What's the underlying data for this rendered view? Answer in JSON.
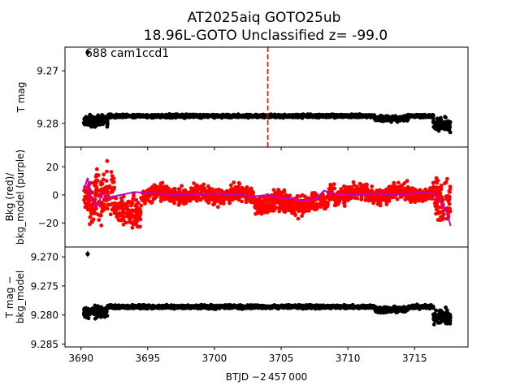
{
  "title_line1": "AT2025aiq  GOTO25ub",
  "title_line2": "18.96L-GOTO Unclassified z= -99.0",
  "annotation": "688 cam1ccd1",
  "xlabel": "BTJD −2 457 000",
  "colors": {
    "black": "#000000",
    "red": "#ff0000",
    "purple": "#bf00bf",
    "marker_line": "#ff0000"
  },
  "chart_data": [
    {
      "type": "scatter",
      "panel": "top",
      "ylabel": "T mag",
      "xlim": [
        3688.8,
        3719.0
      ],
      "ylim": [
        9.2845,
        9.2655
      ],
      "y_inverted": true,
      "x_ticks": [
        3690,
        3695,
        3700,
        3705,
        3710,
        3715
      ],
      "y_ticks": [
        9.27,
        9.28
      ],
      "y_tick_labels": [
        "9.27",
        "9.28"
      ],
      "vertical_line": {
        "x": 3704.0,
        "style": "dashed",
        "color": "red"
      },
      "series": [
        {
          "color": "black",
          "x_range": [
            3690.2,
            3717.7
          ],
          "baseline": 9.2786,
          "scatter": 0.0006,
          "segments": [
            {
              "x": [
                3690.2,
                3692.0
              ],
              "center": 9.2795,
              "spread": 0.0018
            },
            {
              "x": [
                3692.0,
                3712.0
              ],
              "center": 9.2786,
              "spread": 0.0005
            },
            {
              "x": [
                3712.0,
                3714.5
              ],
              "center": 9.2791,
              "spread": 0.0008
            },
            {
              "x": [
                3714.5,
                3716.4
              ],
              "center": 9.2786,
              "spread": 0.0005
            },
            {
              "x": [
                3716.4,
                3717.7
              ],
              "center": 9.2803,
              "spread": 0.0022
            }
          ],
          "outliers": [
            {
              "x": 3690.5,
              "y": 9.2665
            }
          ]
        }
      ]
    },
    {
      "type": "scatter",
      "panel": "middle",
      "ylabel": "Bkg (red)/\nbkg_model (purple)",
      "xlim": [
        3688.8,
        3719.0
      ],
      "ylim": [
        -37,
        34
      ],
      "y_ticks": [
        20,
        0,
        -20
      ],
      "y_tick_labels": [
        "20",
        "0",
        "−20"
      ],
      "series": [
        {
          "name": "Bkg",
          "color": "red",
          "x_range": [
            3690.2,
            3717.7
          ],
          "segments": [
            {
              "x": [
                3690.2,
                3691.0
              ],
              "center": -5,
              "spread": 25
            },
            {
              "x": [
                3691.0,
                3692.5
              ],
              "center": 2,
              "spread": 30
            },
            {
              "x": [
                3692.5,
                3694.5
              ],
              "center": -12,
              "spread": 18
            },
            {
              "x": [
                3694.5,
                3703.0
              ],
              "center": 0,
              "spread": 10
            },
            {
              "x": [
                3703.0,
                3708.5
              ],
              "center": -6,
              "spread": 12
            },
            {
              "x": [
                3708.5,
                3716.5
              ],
              "center": 1,
              "spread": 10
            },
            {
              "x": [
                3716.5,
                3717.7
              ],
              "center": -5,
              "spread": 28
            }
          ]
        },
        {
          "name": "bkg_model",
          "color": "purple",
          "type": "line",
          "x": [
            3690.2,
            3690.5,
            3690.8,
            3691.2,
            3691.6,
            3692.0,
            3693.0,
            3694.0,
            3696.0,
            3698.0,
            3700.0,
            3702.0,
            3703.0,
            3704.0,
            3705.0,
            3706.0,
            3707.0,
            3707.7,
            3708.2,
            3709.0,
            3710.0,
            3712.0,
            3714.0,
            3715.5,
            3716.5,
            3717.0,
            3717.4,
            3717.7
          ],
          "y": [
            3,
            12,
            -4,
            -8,
            1,
            -2,
            0,
            2,
            1,
            0,
            1,
            0,
            -1,
            0,
            -2,
            -3,
            -4,
            -2,
            3,
            1,
            0,
            1,
            0,
            2,
            1,
            -6,
            -12,
            -22
          ]
        }
      ]
    },
    {
      "type": "scatter",
      "panel": "bottom",
      "ylabel": "T mag −\nbkg_model",
      "xlim": [
        3688.8,
        3719.0
      ],
      "ylim": [
        9.2855,
        9.2683
      ],
      "y_inverted": true,
      "x_ticks": [
        3690,
        3695,
        3700,
        3705,
        3710,
        3715
      ],
      "x_tick_labels": [
        "3690",
        "3695",
        "3700",
        "3705",
        "3710",
        "3715"
      ],
      "y_ticks": [
        9.27,
        9.275,
        9.28,
        9.285
      ],
      "y_tick_labels": [
        "9.270",
        "9.275",
        "9.280",
        "9.285"
      ],
      "series": [
        {
          "color": "black",
          "x_range": [
            3690.2,
            3717.7
          ],
          "segments": [
            {
              "x": [
                3690.2,
                3692.0
              ],
              "center": 9.2795,
              "spread": 0.0018
            },
            {
              "x": [
                3692.0,
                3712.0
              ],
              "center": 9.2786,
              "spread": 0.0005
            },
            {
              "x": [
                3712.0,
                3714.5
              ],
              "center": 9.2791,
              "spread": 0.0008
            },
            {
              "x": [
                3714.5,
                3716.4
              ],
              "center": 9.2786,
              "spread": 0.0005
            },
            {
              "x": [
                3716.4,
                3717.7
              ],
              "center": 9.2803,
              "spread": 0.0022
            }
          ],
          "outliers": [
            {
              "x": 3690.5,
              "y": 9.2695
            }
          ]
        }
      ]
    }
  ]
}
